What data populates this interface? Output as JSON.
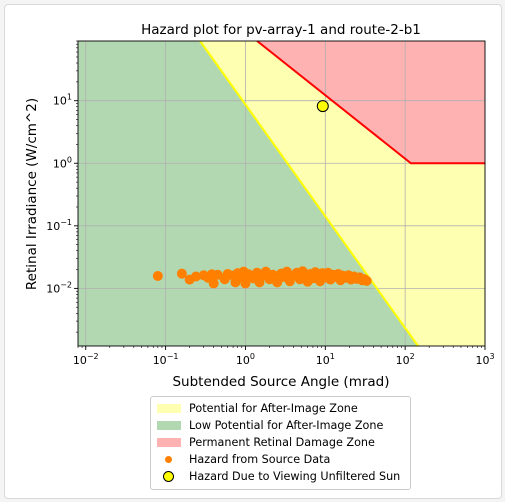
{
  "chart_data": {
    "type": "scatter",
    "title": "Hazard plot for pv-array-1 and route-2-b1",
    "xlabel": "Subtended Source Angle (mrad)",
    "ylabel": "Retinal Irradiance (W/cm^2)",
    "xscale": "log",
    "yscale": "log",
    "xlim": [
      0.008,
      1000
    ],
    "ylim": [
      0.0012,
      90
    ],
    "x_ticks": [
      {
        "value": 0.01,
        "base": "10",
        "exp": "−2"
      },
      {
        "value": 0.1,
        "base": "10",
        "exp": "−1"
      },
      {
        "value": 1,
        "base": "10",
        "exp": "0"
      },
      {
        "value": 10,
        "base": "10",
        "exp": "1"
      },
      {
        "value": 100,
        "base": "10",
        "exp": "2"
      },
      {
        "value": 1000,
        "base": "10",
        "exp": "3"
      }
    ],
    "y_ticks": [
      {
        "value": 0.01,
        "base": "10",
        "exp": "−2"
      },
      {
        "value": 0.1,
        "base": "10",
        "exp": "−1"
      },
      {
        "value": 1,
        "base": "10",
        "exp": "0"
      },
      {
        "value": 10,
        "base": "10",
        "exp": "1"
      }
    ],
    "grid": true,
    "zones": [
      {
        "name": "Potential for After-Image Zone",
        "color": "#ffffb2"
      },
      {
        "name": "Low Potential for After-Image Zone",
        "color": "#b2d8b2"
      },
      {
        "name": "Permanent Retinal Damage Zone",
        "color": "#ffb2b2"
      }
    ],
    "boundary_after_image": {
      "color": "#ffff00",
      "points": [
        [
          0.27,
          90
        ],
        [
          145,
          0.0012
        ]
      ]
    },
    "boundary_retinal_damage": {
      "color": "#ff0000",
      "points": [
        [
          1.4,
          90
        ],
        [
          118,
          1.0
        ],
        [
          1000,
          1.0
        ]
      ]
    },
    "series": [
      {
        "name": "Hazard from Source Data",
        "color": "#ff8000",
        "points": [
          [
            0.08,
            0.0158
          ],
          [
            0.16,
            0.0172
          ],
          [
            0.2,
            0.0138
          ],
          [
            0.24,
            0.0155
          ],
          [
            0.3,
            0.0162
          ],
          [
            0.34,
            0.0148
          ],
          [
            0.38,
            0.0168
          ],
          [
            0.4,
            0.012
          ],
          [
            0.45,
            0.0165
          ],
          [
            0.55,
            0.014
          ],
          [
            0.6,
            0.017
          ],
          [
            0.7,
            0.016
          ],
          [
            0.75,
            0.0125
          ],
          [
            0.8,
            0.0175
          ],
          [
            0.9,
            0.015
          ],
          [
            0.95,
            0.0185
          ],
          [
            1.0,
            0.012
          ],
          [
            1.1,
            0.0168
          ],
          [
            1.25,
            0.0145
          ],
          [
            1.4,
            0.0178
          ],
          [
            1.5,
            0.0125
          ],
          [
            1.6,
            0.0158
          ],
          [
            1.8,
            0.0185
          ],
          [
            2.0,
            0.014
          ],
          [
            2.2,
            0.0165
          ],
          [
            2.5,
            0.0125
          ],
          [
            2.8,
            0.0172
          ],
          [
            3.0,
            0.0152
          ],
          [
            3.3,
            0.0185
          ],
          [
            3.6,
            0.013
          ],
          [
            4.0,
            0.0162
          ],
          [
            4.4,
            0.0178
          ],
          [
            4.8,
            0.014
          ],
          [
            5.2,
            0.0188
          ],
          [
            5.6,
            0.0155
          ],
          [
            6.0,
            0.0128
          ],
          [
            6.5,
            0.017
          ],
          [
            7.0,
            0.0145
          ],
          [
            7.5,
            0.0182
          ],
          [
            8.0,
            0.016
          ],
          [
            8.6,
            0.013
          ],
          [
            9.2,
            0.0175
          ],
          [
            10.0,
            0.015
          ],
          [
            10.8,
            0.0178
          ],
          [
            11.6,
            0.0138
          ],
          [
            12.5,
            0.0165
          ],
          [
            13.5,
            0.0152
          ],
          [
            14.5,
            0.017
          ],
          [
            15.5,
            0.0135
          ],
          [
            16.5,
            0.016
          ],
          [
            18.0,
            0.0148
          ],
          [
            19.5,
            0.0162
          ],
          [
            21.0,
            0.0138
          ],
          [
            23.0,
            0.0155
          ],
          [
            25.0,
            0.0142
          ],
          [
            27.0,
            0.015
          ],
          [
            29.0,
            0.0135
          ],
          [
            31.0,
            0.014
          ],
          [
            33.0,
            0.0132
          ]
        ]
      },
      {
        "name": "Hazard Due to Viewing Unfiltered Sun",
        "color": "#ffff00",
        "points": [
          [
            9.3,
            8.2
          ]
        ]
      }
    ],
    "legend": {
      "placement": "below-plot",
      "items": [
        {
          "label": "Potential for After-Image Zone",
          "kind": "patch",
          "color": "#ffffb2"
        },
        {
          "label": "Low Potential for After-Image Zone",
          "kind": "patch",
          "color": "#b2d8b2"
        },
        {
          "label": "Permanent Retinal Damage Zone",
          "kind": "patch",
          "color": "#ffb2b2"
        },
        {
          "label": "Hazard from Source Data",
          "kind": "dot",
          "color": "#ff8000"
        },
        {
          "label": "Hazard Due to Viewing Unfiltered Sun",
          "kind": "ring",
          "color": "#ffff00"
        }
      ]
    }
  }
}
